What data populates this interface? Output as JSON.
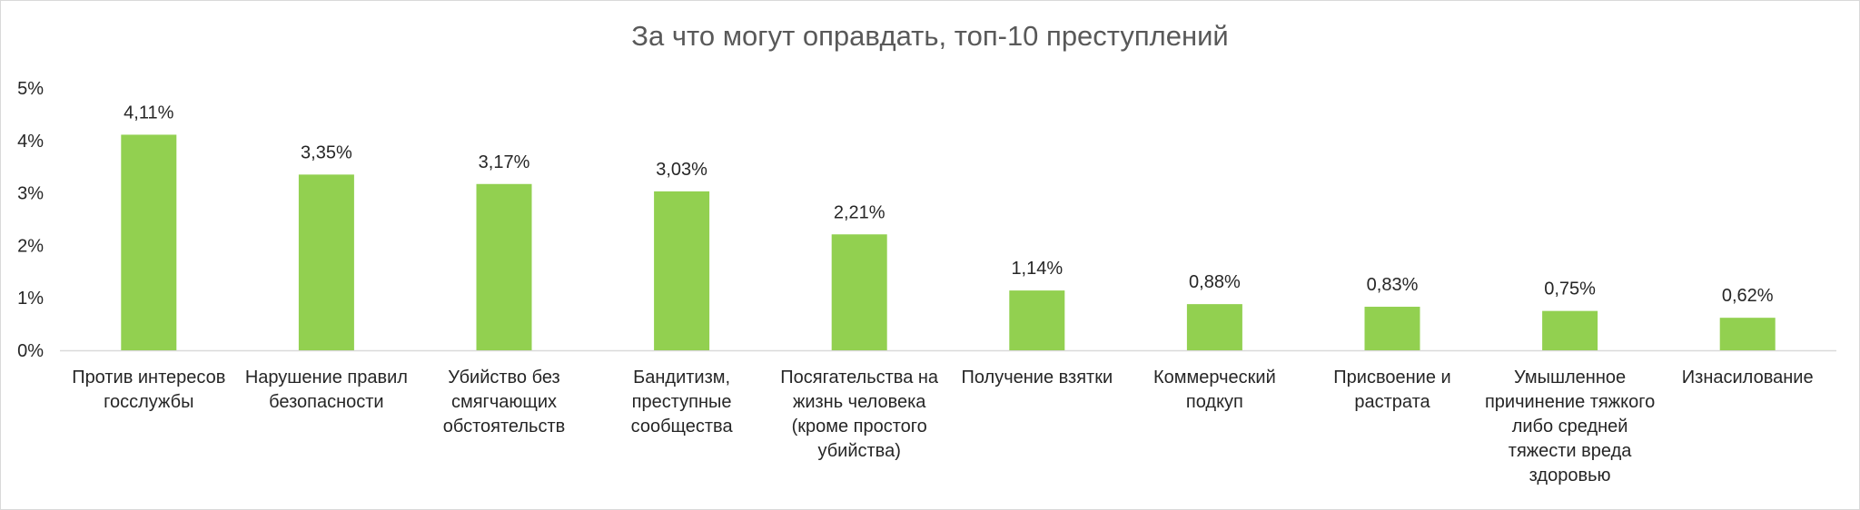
{
  "chart_data": {
    "type": "bar",
    "title": "За что могут оправдать, топ-10 преступлений",
    "xlabel": "",
    "ylabel": "",
    "ylim": [
      0,
      5
    ],
    "y_ticks": [
      "0%",
      "1%",
      "2%",
      "3%",
      "4%",
      "5%"
    ],
    "grid": false,
    "legend": "none",
    "bar_color": "#92d050",
    "categories": [
      "Против интересов госслужбы",
      "Нарушение правил безопасности",
      "Убийство без смягчающих обстоятельств",
      "Бандитизм, преступные сообщества",
      "Посягательства на жизнь человека (кроме простого убийства)",
      "Получение взятки",
      "Коммерческий подкуп",
      "Присвоение и растрата",
      "Умышленное причинение тяжкого либо средней тяжести вреда здоровью",
      "Изнасилование"
    ],
    "values": [
      4.11,
      3.35,
      3.17,
      3.03,
      2.21,
      1.14,
      0.88,
      0.83,
      0.75,
      0.62
    ],
    "data_labels": [
      "4,11%",
      "3,35%",
      "3,17%",
      "3,03%",
      "2,21%",
      "1,14%",
      "0,88%",
      "0,83%",
      "0,75%",
      "0,62%"
    ]
  }
}
